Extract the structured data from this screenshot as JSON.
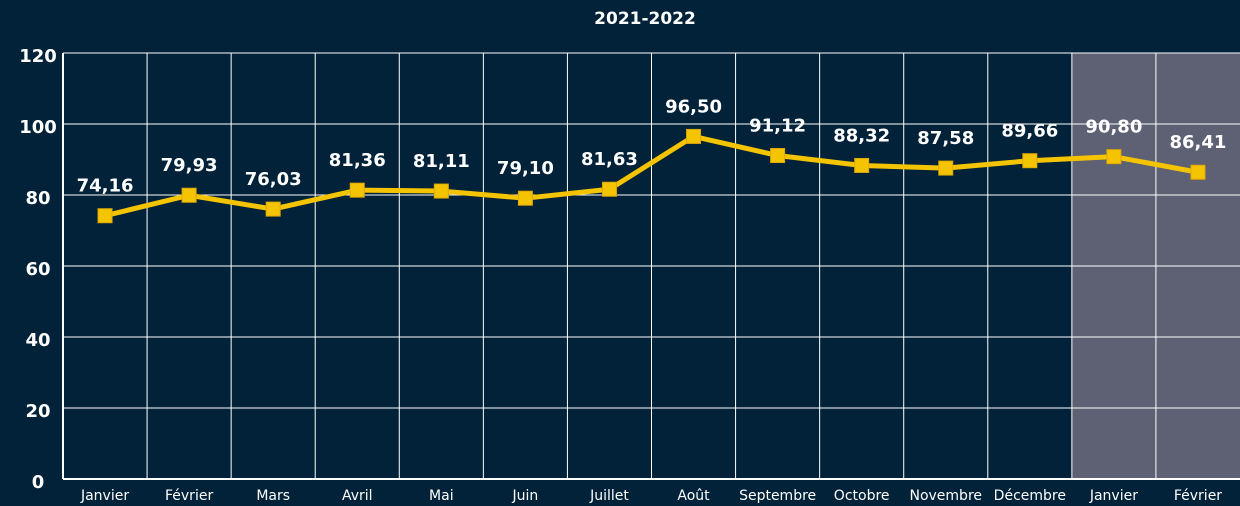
{
  "chart_data": {
    "type": "line",
    "title": "2021-2022",
    "categories": [
      "Janvier",
      "Février",
      "Mars",
      "Avril",
      "Mai",
      "Juin",
      "Juillet",
      "Août",
      "Septembre",
      "Octobre",
      "Novembre",
      "Décembre",
      "Janvier",
      "Février"
    ],
    "series": [
      {
        "color": "#f5c400",
        "values": [
          74.16,
          79.93,
          76.03,
          81.36,
          81.11,
          79.1,
          81.63,
          96.5,
          91.12,
          88.32,
          87.58,
          89.66,
          90.8,
          86.41
        ],
        "value_labels": [
          "74,16",
          "79,93",
          "76,03",
          "81,36",
          "81,11",
          "79,10",
          "81,63",
          "96,50",
          "91,12",
          "88,32",
          "87,58",
          "89,66",
          "90,80",
          "86,41"
        ]
      }
    ],
    "ylim": [
      0,
      120
    ],
    "yticks": [
      0,
      20,
      40,
      60,
      80,
      100,
      120
    ],
    "grid": true,
    "highlight": {
      "categories": [
        12,
        13
      ],
      "color": "#5e6073"
    }
  }
}
